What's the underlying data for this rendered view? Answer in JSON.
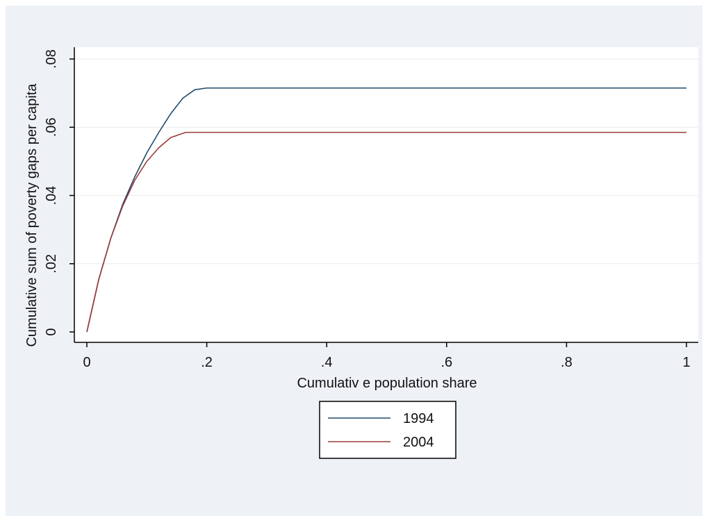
{
  "chart_data": {
    "type": "line",
    "title": "",
    "xlabel": "Cumulativ e population share",
    "ylabel": "Cumulative sum of poverty gaps per capita",
    "xlim": [
      0,
      1
    ],
    "ylim": [
      0,
      0.08
    ],
    "x_ticks": [
      0,
      0.2,
      0.4,
      0.6,
      0.8,
      1
    ],
    "x_tick_labels": [
      "0",
      ".2",
      ".4",
      ".6",
      ".8",
      "1"
    ],
    "y_ticks": [
      0,
      0.02,
      0.04,
      0.06,
      0.08
    ],
    "y_tick_labels": [
      "0",
      ".02",
      ".04",
      ".06",
      ".08"
    ],
    "grid": true,
    "legend_position": "bottom-center",
    "series": [
      {
        "name": "1994",
        "color": "#1f4a6b",
        "x": [
          0,
          0.02,
          0.04,
          0.06,
          0.08,
          0.1,
          0.12,
          0.14,
          0.16,
          0.18,
          0.2,
          1.0
        ],
        "y": [
          0,
          0.0155,
          0.0275,
          0.0375,
          0.0455,
          0.0525,
          0.0585,
          0.064,
          0.0685,
          0.071,
          0.0715,
          0.0715
        ]
      },
      {
        "name": "2004",
        "color": "#9b3a3a",
        "x": [
          0,
          0.02,
          0.04,
          0.06,
          0.08,
          0.1,
          0.12,
          0.14,
          0.165,
          1.0
        ],
        "y": [
          0,
          0.0155,
          0.0275,
          0.037,
          0.0445,
          0.05,
          0.054,
          0.057,
          0.0585,
          0.0585
        ]
      }
    ]
  }
}
